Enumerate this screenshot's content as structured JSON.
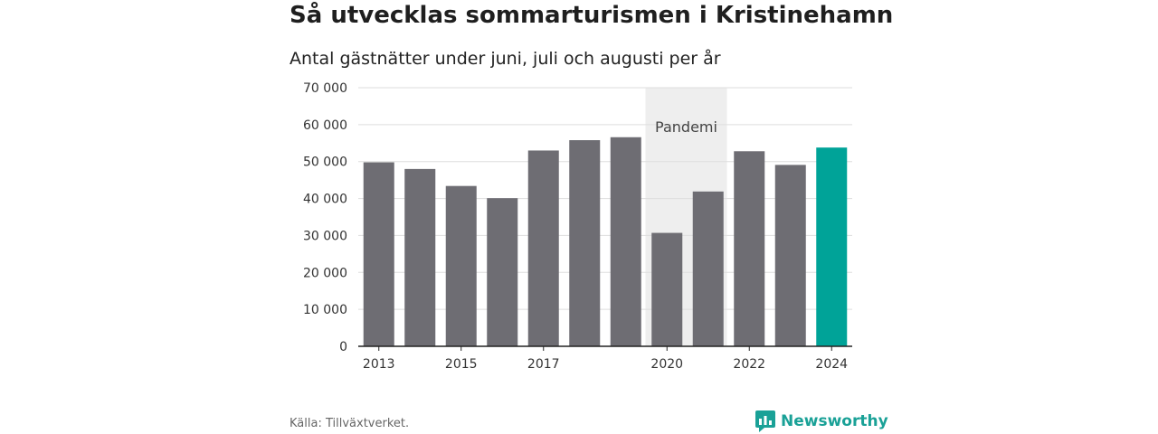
{
  "title": "Så utvecklas sommarturismen i Kristinehamn",
  "subtitle": "Antal gästnätter under juni, juli och augusti per år",
  "source": "Källa: Tillväxtverket.",
  "brand": {
    "name": "Newsworthy",
    "icon": "bar-chart-speech-bubble-icon",
    "color": "#1aa197"
  },
  "chart_data": {
    "type": "bar",
    "categories": [
      "2013",
      "2014",
      "2015",
      "2016",
      "2017",
      "2018",
      "2019",
      "2020",
      "2021",
      "2022",
      "2023",
      "2024"
    ],
    "values": [
      49800,
      48000,
      43400,
      40100,
      53000,
      55800,
      56600,
      30700,
      41900,
      52800,
      49100,
      53800
    ],
    "x_tick_labels": [
      "2013",
      "2015",
      "2017",
      "2020",
      "2022",
      "2024"
    ],
    "y_ticks": [
      0,
      10000,
      20000,
      30000,
      40000,
      50000,
      60000,
      70000
    ],
    "y_tick_labels": [
      "0",
      "10 000",
      "20 000",
      "30 000",
      "40 000",
      "50 000",
      "60 000",
      "70 000"
    ],
    "ylim": [
      0,
      70000
    ],
    "grid": true,
    "colors": {
      "default": "#6e6d73",
      "highlight": "#00a398",
      "band": "#eeeeee"
    },
    "highlight_category": "2024",
    "annotation": {
      "label": "Pandemi",
      "from": "2020",
      "to": "2021"
    }
  }
}
